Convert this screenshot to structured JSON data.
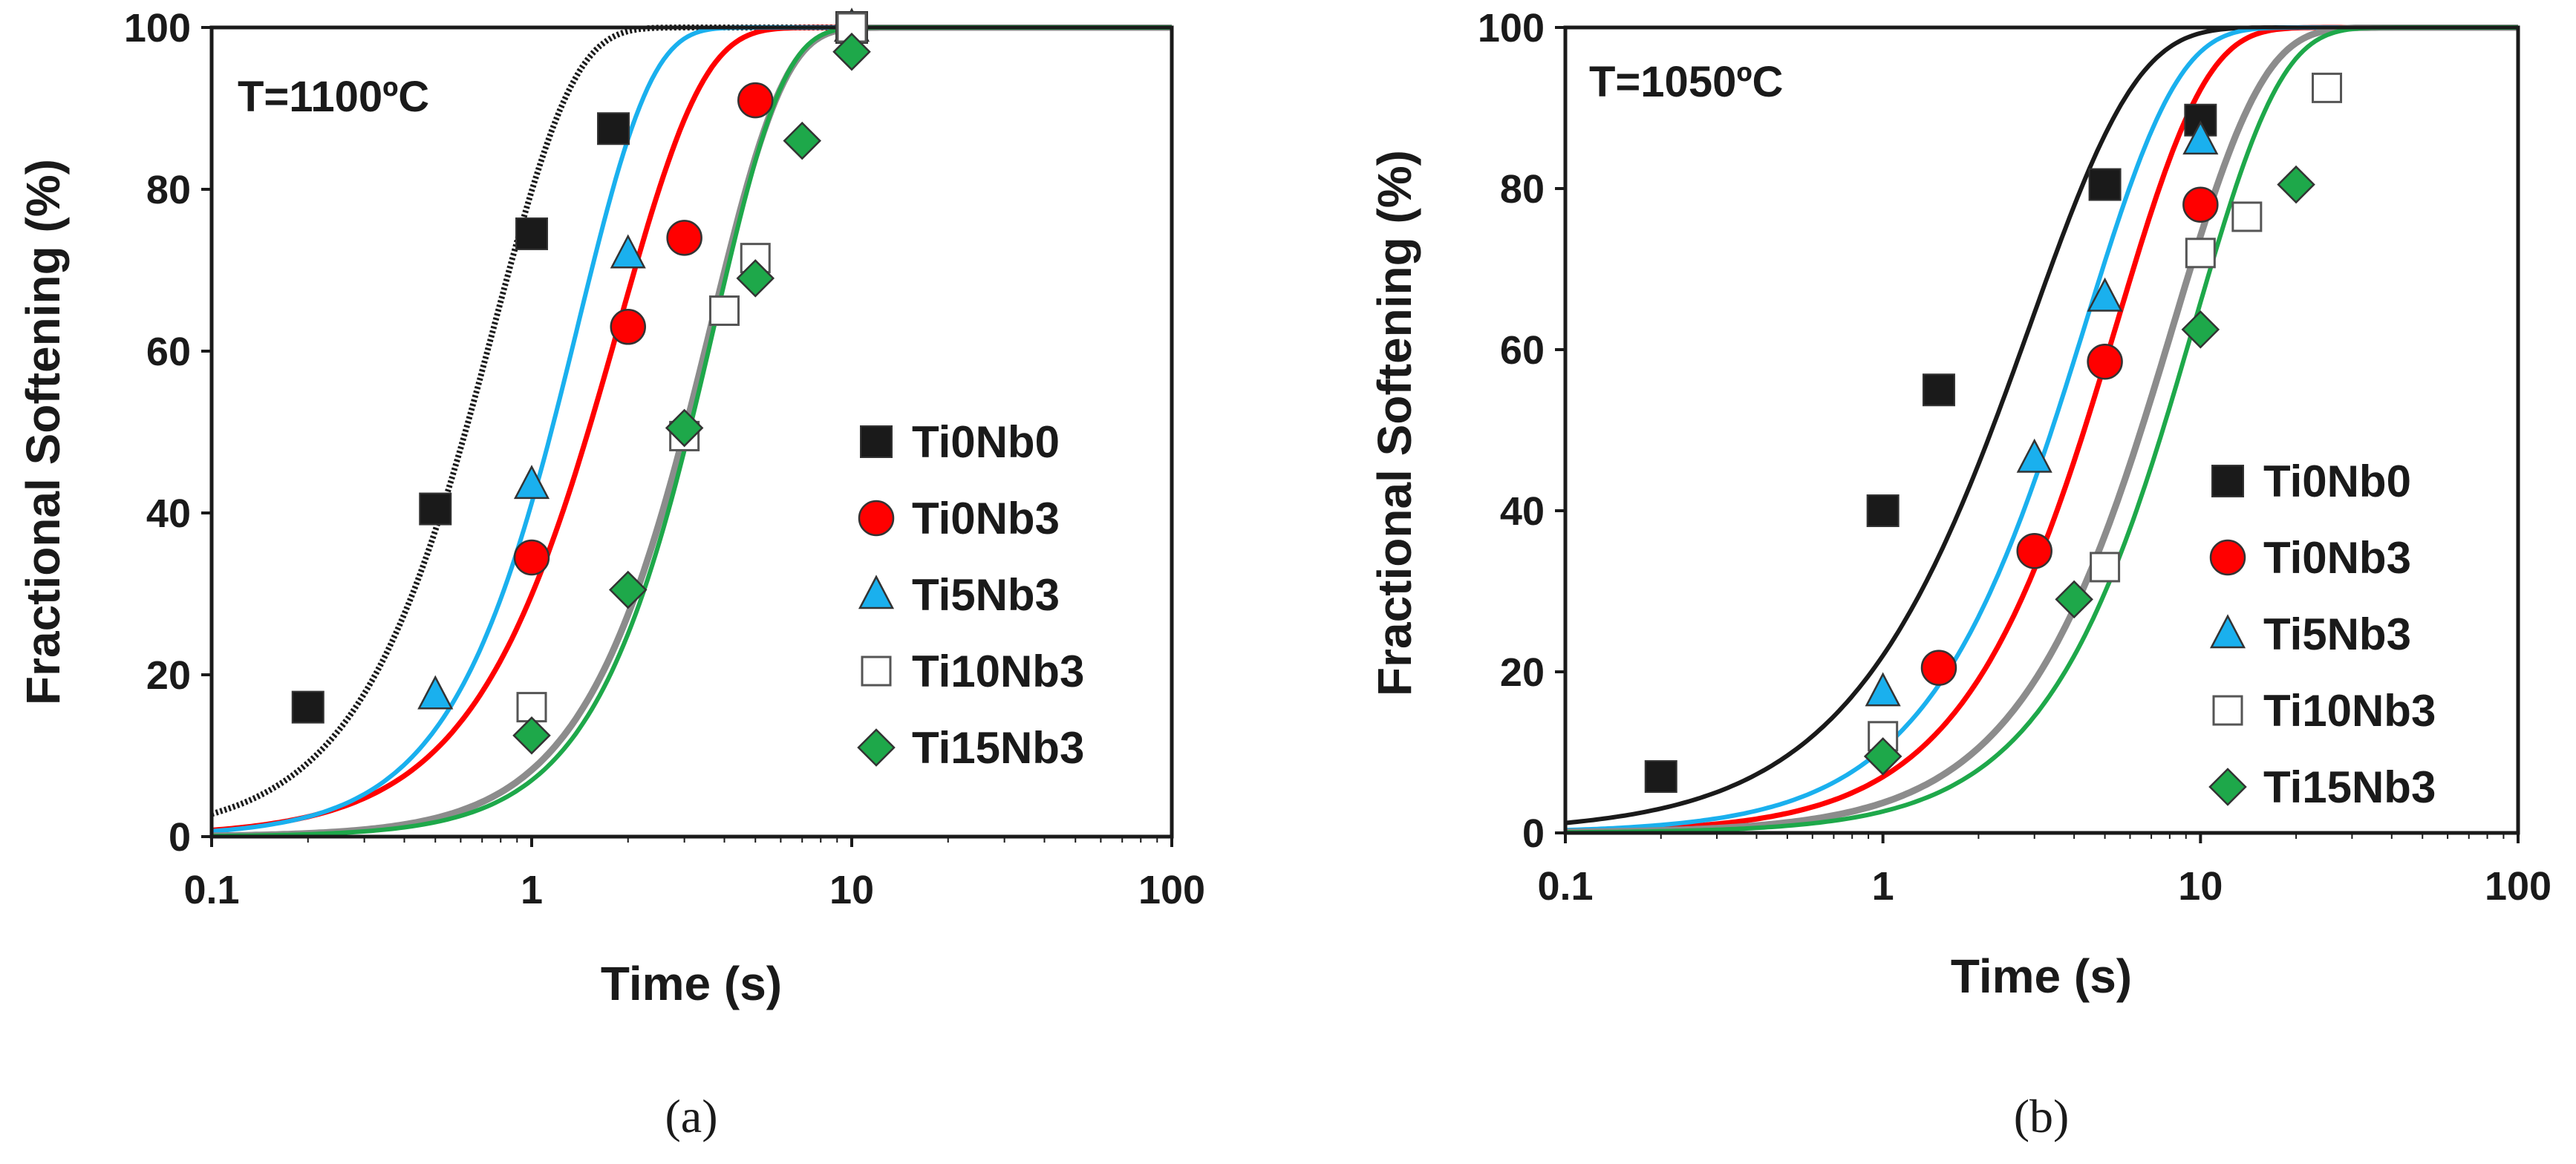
{
  "colors": {
    "Ti0Nb0": "#1a1a1a",
    "Ti0Nb3": "#ff0000",
    "Ti5Nb3": "#1ab0ee",
    "Ti10Nb3": "#ffffff",
    "Ti15Nb3": "#1ea84a",
    "curve_Ti10Nb3": "#8c8c8c",
    "marker_edge": "#333333"
  },
  "chart_data": [
    {
      "type": "scatter",
      "panel": "a",
      "caption": "(a)",
      "annotation": "T=1100ºC",
      "xlabel": "Time (s)",
      "ylabel": "Fractional Softening (%)",
      "xscale": "log",
      "xlim": [
        0.1,
        100
      ],
      "ylim": [
        0,
        100
      ],
      "xticks": [
        0.1,
        1,
        10,
        100
      ],
      "xtick_labels": [
        "0.1",
        "1",
        "10",
        "100"
      ],
      "yticks": [
        0,
        20,
        40,
        60,
        80,
        100
      ],
      "ytick_labels": [
        "0",
        "20",
        "40",
        "60",
        "80",
        "100"
      ],
      "legend_position": "center-right",
      "series": [
        {
          "name": "Ti0Nb0",
          "marker": "square",
          "x": [
            0.2,
            0.5,
            1.0,
            1.8,
            10
          ],
          "y": [
            16,
            40.5,
            74.5,
            87.5,
            100
          ]
        },
        {
          "name": "Ti0Nb3",
          "marker": "circle",
          "x": [
            1.0,
            2.0,
            3.0,
            5.0
          ],
          "y": [
            34.5,
            63,
            74,
            91
          ]
        },
        {
          "name": "Ti5Nb3",
          "marker": "triangle",
          "x": [
            0.5,
            1.0,
            2.0,
            10
          ],
          "y": [
            17.5,
            43.5,
            72,
            100
          ]
        },
        {
          "name": "Ti10Nb3",
          "marker": "open-square",
          "x": [
            1.0,
            3.0,
            4.0,
            5.0,
            10
          ],
          "y": [
            16,
            49.5,
            65,
            71.5,
            100
          ]
        },
        {
          "name": "Ti15Nb3",
          "marker": "diamond",
          "x": [
            1.0,
            2.0,
            3.0,
            5.0,
            7.0,
            10
          ],
          "y": [
            12.5,
            30.5,
            50.5,
            69,
            86,
            97
          ]
        }
      ],
      "fits": [
        {
          "name": "Ti0Nb0",
          "style": "dotted",
          "t50": 0.62,
          "n": 1.75
        },
        {
          "name": "Ti0Nb3",
          "style": "solid",
          "t50": 1.5,
          "n": 1.65
        },
        {
          "name": "Ti5Nb3",
          "style": "solid",
          "t50": 1.15,
          "n": 1.9
        },
        {
          "name": "Ti10Nb3",
          "style": "solid",
          "t50": 3.0,
          "n": 1.9
        },
        {
          "name": "Ti15Nb3",
          "style": "solid",
          "t50": 3.1,
          "n": 2.0
        }
      ]
    },
    {
      "type": "scatter",
      "panel": "b",
      "caption": "(b)",
      "annotation": "T=1050ºC",
      "xlabel": "Time (s)",
      "ylabel": "Fractional Softening (%)",
      "xscale": "log",
      "xlim": [
        0.1,
        100
      ],
      "ylim": [
        0,
        100
      ],
      "xticks": [
        0.1,
        1,
        10,
        100
      ],
      "xtick_labels": [
        "0.1",
        "1",
        "10",
        "100"
      ],
      "yticks": [
        0,
        20,
        40,
        60,
        80,
        100
      ],
      "ytick_labels": [
        "0",
        "20",
        "40",
        "60",
        "80",
        "100"
      ],
      "legend_position": "center-right",
      "series": [
        {
          "name": "Ti0Nb0",
          "marker": "square",
          "x": [
            0.2,
            1.0,
            1.5,
            5.0,
            10
          ],
          "y": [
            7,
            40,
            55,
            80.5,
            88.5
          ]
        },
        {
          "name": "Ti0Nb3",
          "marker": "circle",
          "x": [
            1.5,
            3.0,
            5.0,
            10
          ],
          "y": [
            20.5,
            35,
            58.5,
            78
          ]
        },
        {
          "name": "Ti5Nb3",
          "marker": "triangle",
          "x": [
            1.0,
            3.0,
            5.0,
            10
          ],
          "y": [
            17.5,
            46.5,
            66.5,
            86
          ]
        },
        {
          "name": "Ti10Nb3",
          "marker": "open-square",
          "x": [
            1.0,
            5.0,
            10,
            14,
            25
          ],
          "y": [
            12,
            33,
            72,
            76.5,
            92.5
          ]
        },
        {
          "name": "Ti15Nb3",
          "marker": "diamond",
          "x": [
            1.0,
            4.0,
            10,
            20
          ],
          "y": [
            9.5,
            29,
            62.5,
            80.5
          ]
        }
      ],
      "fits": [
        {
          "name": "Ti0Nb0",
          "style": "solid",
          "t50": 2.2,
          "n": 1.3
        },
        {
          "name": "Ti0Nb3",
          "style": "solid",
          "t50": 4.3,
          "n": 1.55
        },
        {
          "name": "Ti5Nb3",
          "style": "solid",
          "t50": 3.4,
          "n": 1.5
        },
        {
          "name": "Ti10Nb3",
          "style": "solid",
          "t50": 6.5,
          "n": 1.55
        },
        {
          "name": "Ti15Nb3",
          "style": "solid",
          "t50": 7.6,
          "n": 1.6
        }
      ]
    }
  ]
}
